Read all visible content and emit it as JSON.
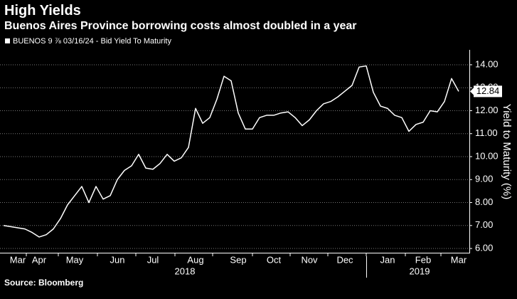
{
  "chart_data": {
    "type": "line",
    "title": "High Yields",
    "subtitle": "Buenos Aires Province borrowing costs almost doubled in a year",
    "y_label": "Yield to Maturity (%)",
    "source": "Source: Bloomberg",
    "year_labels": [
      "2018",
      "2019"
    ],
    "categories": [
      null,
      null,
      "Mar",
      null,
      null,
      "Apr",
      null,
      null,
      null,
      null,
      "May",
      null,
      null,
      null,
      null,
      null,
      "Jun",
      null,
      null,
      null,
      null,
      "Jul",
      null,
      null,
      null,
      null,
      null,
      "Aug",
      null,
      null,
      null,
      null,
      null,
      "Sep",
      null,
      null,
      null,
      null,
      "Oct",
      null,
      null,
      null,
      null,
      "Nov",
      null,
      null,
      null,
      null,
      "Dec",
      null,
      null,
      null,
      null,
      null,
      "Jan",
      null,
      null,
      null,
      null,
      "Feb",
      null,
      null,
      null,
      null,
      "Mar"
    ],
    "series": [
      {
        "name": "BUENOS 9 ⅞ 03/16/24 - Bid Yield To Maturity",
        "color": "#ffffff",
        "values": [
          7.0,
          6.95,
          6.9,
          6.85,
          6.7,
          6.5,
          6.6,
          6.85,
          7.3,
          7.9,
          8.3,
          8.7,
          8.0,
          8.7,
          8.15,
          8.3,
          9.0,
          9.4,
          9.6,
          10.1,
          9.5,
          9.45,
          9.7,
          10.1,
          9.8,
          9.95,
          10.4,
          12.1,
          11.45,
          11.7,
          12.5,
          13.5,
          13.3,
          11.9,
          11.2,
          11.2,
          11.7,
          11.8,
          11.8,
          11.9,
          11.95,
          11.7,
          11.35,
          11.6,
          12.0,
          12.3,
          12.4,
          12.6,
          12.85,
          13.1,
          13.9,
          13.95,
          12.8,
          12.2,
          12.1,
          11.8,
          11.7,
          11.1,
          11.4,
          11.5,
          12.0,
          11.95,
          12.4,
          13.4,
          12.84
        ]
      }
    ],
    "ylim": [
      5.8,
      14.6
    ],
    "yticks": [
      {
        "value": 6,
        "label": "6.00"
      },
      {
        "value": 7,
        "label": "7.00"
      },
      {
        "value": 8,
        "label": "8.00"
      },
      {
        "value": 9,
        "label": "9.00"
      },
      {
        "value": 10,
        "label": "10.00"
      },
      {
        "value": 11,
        "label": "11.00"
      },
      {
        "value": 12,
        "label": "12.00"
      },
      {
        "value": 13,
        "label": "13.00"
      },
      {
        "value": 14,
        "label": "14.00"
      }
    ],
    "grid": true
  }
}
